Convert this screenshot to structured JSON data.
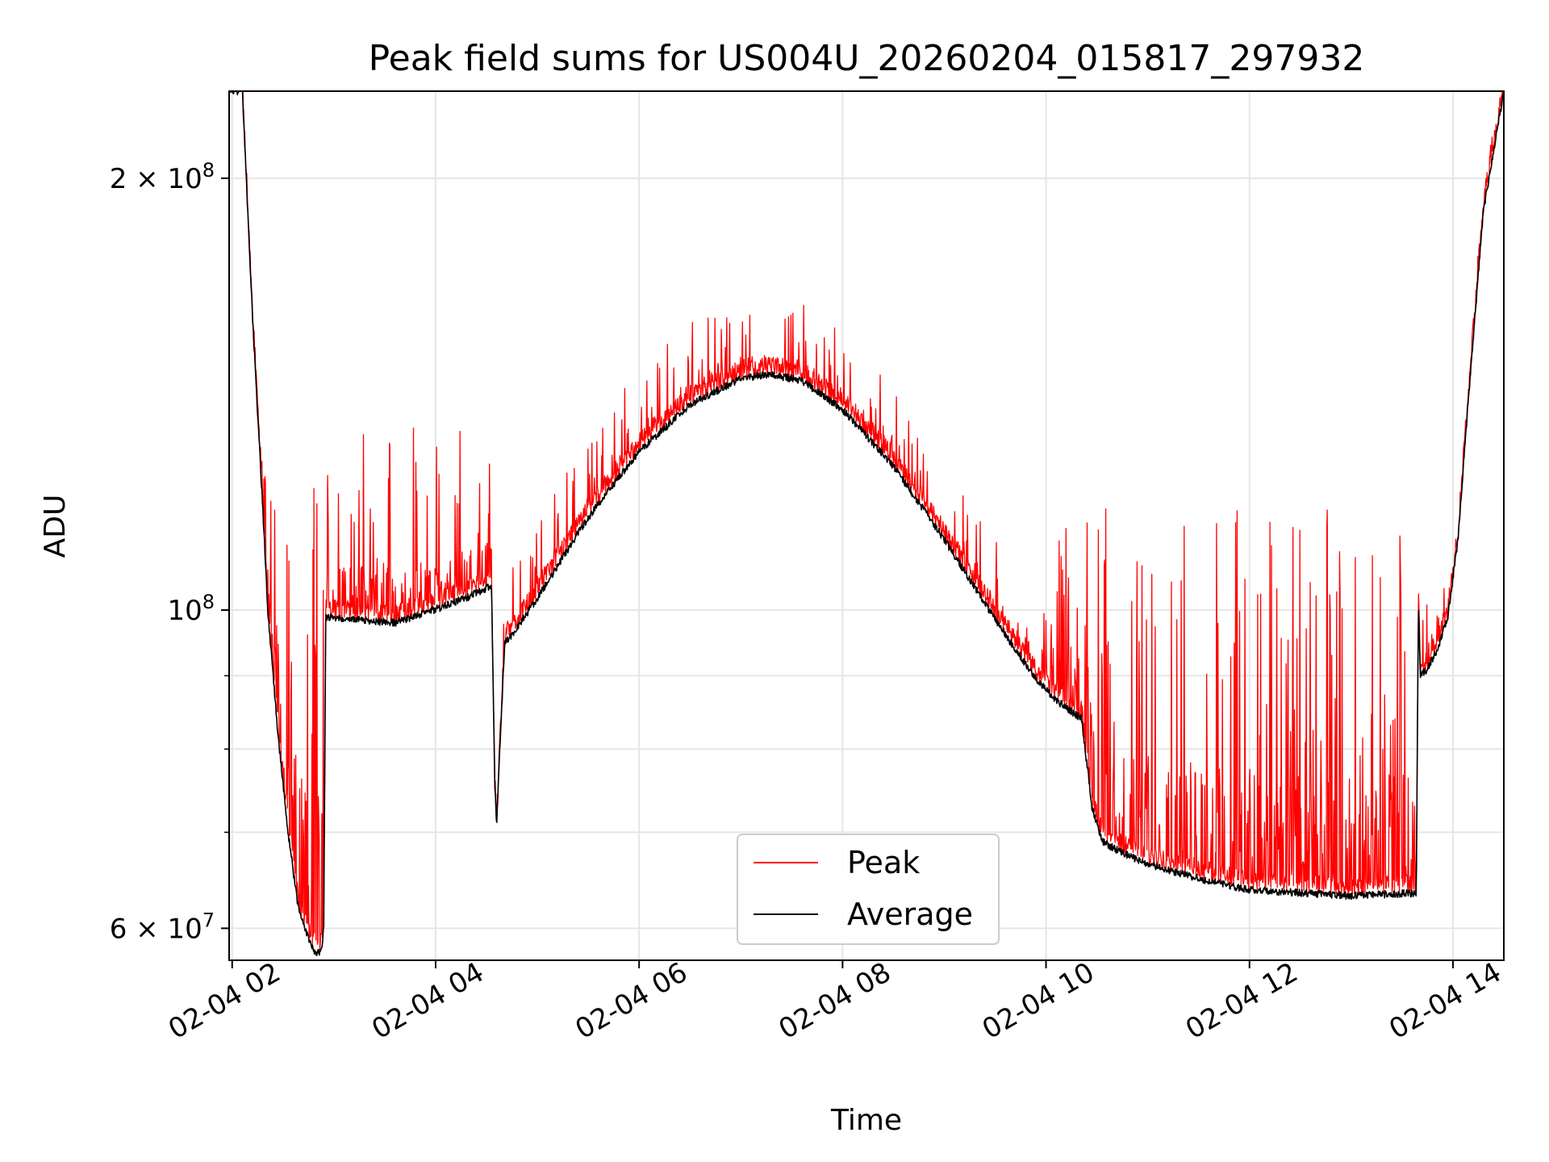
{
  "chart_data": {
    "type": "line",
    "title": "Peak field sums for US004U_20260204_015817_297932",
    "xlabel": "Time",
    "ylabel": "ADU",
    "yscale": "log",
    "xlim": [
      1.97,
      14.5
    ],
    "ylim": [
      57000000,
      230000000
    ],
    "x_ticks": [
      2,
      4,
      6,
      8,
      10,
      12,
      14
    ],
    "x_tick_labels": [
      "02-04 02",
      "02-04 04",
      "02-04 06",
      "02-04 08",
      "02-04 10",
      "02-04 12",
      "02-04 14"
    ],
    "y_major_ticks": [
      {
        "value": 60000000,
        "mant": "6",
        "exp": "7"
      },
      {
        "value": 100000000,
        "mant": "",
        "exp": "8"
      },
      {
        "value": 200000000,
        "mant": "2",
        "exp": "8"
      }
    ],
    "y_minor_ticks": [
      70000000,
      80000000,
      90000000
    ],
    "grid": true,
    "legend_position": "lower-center",
    "series": [
      {
        "name": "Peak",
        "color": "#ff0000",
        "spikes": {
          "left_spike_max": 130000000.0,
          "plateau_spike_max": 135000000.0,
          "dome_spike_max": 168000000.0,
          "tail_spike_max": 118000000.0
        }
      },
      {
        "name": "Average",
        "color": "#000000",
        "x": [
          1.97,
          2.1,
          2.2,
          2.3,
          2.35,
          2.45,
          2.55,
          2.65,
          2.75,
          2.83,
          2.88,
          2.9,
          2.92,
          3.2,
          3.6,
          3.9,
          4.3,
          4.55,
          4.58,
          4.6,
          4.63,
          4.68,
          4.75,
          5.0,
          5.5,
          6.0,
          6.5,
          7.0,
          7.3,
          7.6,
          8.0,
          8.5,
          9.0,
          9.5,
          9.9,
          10.1,
          10.35,
          10.45,
          10.55,
          10.7,
          11.0,
          11.5,
          12.0,
          12.5,
          13.0,
          13.4,
          13.64,
          13.66,
          13.68,
          13.75,
          13.85,
          13.95,
          14.05,
          14.15,
          14.3,
          14.5
        ],
        "y": [
          230000000,
          230000000,
          160000000,
          118000000,
          100000000,
          82000000,
          70000000,
          62000000,
          59000000,
          57500000,
          58000000,
          60000000,
          99000000,
          98500000,
          98000000,
          99500000,
          102000000,
          104000000,
          76000000,
          70500000,
          80000000,
          95000000,
          96000000,
          102000000,
          116000000,
          129000000,
          139000000,
          145000000,
          146000000,
          144500000,
          138000000,
          126000000,
          112000000,
          98500000,
          89500000,
          86500000,
          84000000,
          73000000,
          69000000,
          68000000,
          66500000,
          65000000,
          63800000,
          63500000,
          63200000,
          63400000,
          63500000,
          101000000,
          90000000,
          91000000,
          94000000,
          99000000,
          112000000,
          140000000,
          190000000,
          230000000
        ]
      }
    ]
  }
}
